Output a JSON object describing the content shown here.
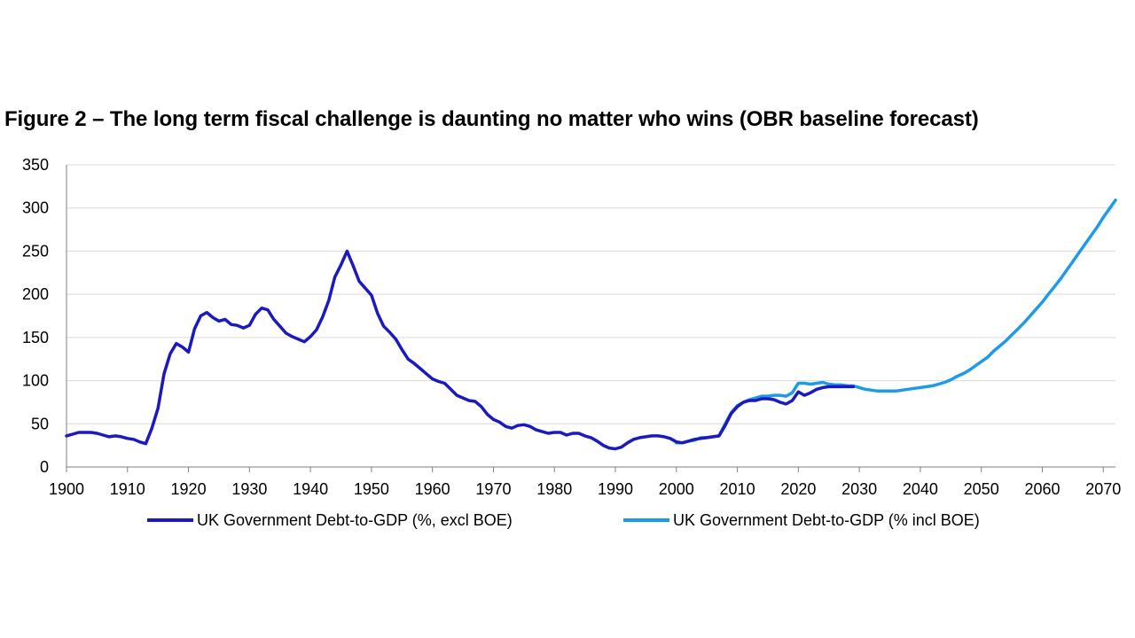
{
  "chart_data": {
    "type": "line",
    "title": "Figure 2 – The long term fiscal challenge is daunting no matter who wins (OBR baseline forecast)",
    "xlabel": "",
    "ylabel": "",
    "xlim": [
      1900,
      2072
    ],
    "ylim": [
      0,
      350
    ],
    "x_ticks": [
      "1900",
      "1910",
      "1920",
      "1930",
      "1940",
      "1950",
      "1960",
      "1970",
      "1980",
      "1990",
      "2000",
      "2010",
      "2020",
      "2030",
      "2040",
      "2050",
      "2060",
      "2070"
    ],
    "y_ticks": [
      "0",
      "50",
      "100",
      "150",
      "200",
      "250",
      "300",
      "350"
    ],
    "grid": "horizontal",
    "legend_position": "bottom",
    "colors": {
      "excl": "#1a1abf",
      "incl": "#1e9be8",
      "grid": "#d9d9d9",
      "axis": "#7f7f7f"
    },
    "series": [
      {
        "name": "UK Government Debt-to-GDP (%, excl BOE)",
        "color": "#1a1abf",
        "points": [
          [
            1900,
            36
          ],
          [
            1901,
            38
          ],
          [
            1902,
            40
          ],
          [
            1903,
            40
          ],
          [
            1904,
            40
          ],
          [
            1905,
            39
          ],
          [
            1906,
            37
          ],
          [
            1907,
            35
          ],
          [
            1908,
            36
          ],
          [
            1909,
            35
          ],
          [
            1910,
            33
          ],
          [
            1911,
            32
          ],
          [
            1912,
            29
          ],
          [
            1913,
            27
          ],
          [
            1914,
            45
          ],
          [
            1915,
            68
          ],
          [
            1916,
            108
          ],
          [
            1917,
            131
          ],
          [
            1918,
            143
          ],
          [
            1919,
            139
          ],
          [
            1920,
            133
          ],
          [
            1921,
            160
          ],
          [
            1922,
            175
          ],
          [
            1923,
            179
          ],
          [
            1924,
            173
          ],
          [
            1925,
            169
          ],
          [
            1926,
            171
          ],
          [
            1927,
            165
          ],
          [
            1928,
            164
          ],
          [
            1929,
            161
          ],
          [
            1930,
            164
          ],
          [
            1931,
            177
          ],
          [
            1932,
            184
          ],
          [
            1933,
            182
          ],
          [
            1934,
            171
          ],
          [
            1935,
            163
          ],
          [
            1936,
            155
          ],
          [
            1937,
            151
          ],
          [
            1938,
            148
          ],
          [
            1939,
            145
          ],
          [
            1940,
            151
          ],
          [
            1941,
            159
          ],
          [
            1942,
            174
          ],
          [
            1943,
            193
          ],
          [
            1944,
            220
          ],
          [
            1945,
            234
          ],
          [
            1946,
            250
          ],
          [
            1947,
            233
          ],
          [
            1948,
            215
          ],
          [
            1949,
            207
          ],
          [
            1950,
            199
          ],
          [
            1951,
            178
          ],
          [
            1952,
            163
          ],
          [
            1953,
            156
          ],
          [
            1954,
            148
          ],
          [
            1955,
            136
          ],
          [
            1956,
            125
          ],
          [
            1957,
            120
          ],
          [
            1958,
            114
          ],
          [
            1959,
            108
          ],
          [
            1960,
            102
          ],
          [
            1961,
            99
          ],
          [
            1962,
            97
          ],
          [
            1963,
            90
          ],
          [
            1964,
            83
          ],
          [
            1965,
            80
          ],
          [
            1966,
            77
          ],
          [
            1967,
            76
          ],
          [
            1968,
            70
          ],
          [
            1969,
            61
          ],
          [
            1970,
            55
          ],
          [
            1971,
            52
          ],
          [
            1972,
            47
          ],
          [
            1973,
            45
          ],
          [
            1974,
            48
          ],
          [
            1975,
            49
          ],
          [
            1976,
            47
          ],
          [
            1977,
            43
          ],
          [
            1978,
            41
          ],
          [
            1979,
            39
          ],
          [
            1980,
            40
          ],
          [
            1981,
            40
          ],
          [
            1982,
            37
          ],
          [
            1983,
            39
          ],
          [
            1984,
            39
          ],
          [
            1985,
            36
          ],
          [
            1986,
            34
          ],
          [
            1987,
            30
          ],
          [
            1988,
            25
          ],
          [
            1989,
            22
          ],
          [
            1990,
            21
          ],
          [
            1991,
            23
          ],
          [
            1992,
            28
          ],
          [
            1993,
            32
          ],
          [
            1994,
            34
          ],
          [
            1995,
            35
          ],
          [
            1996,
            36
          ],
          [
            1997,
            36
          ],
          [
            1998,
            35
          ],
          [
            1999,
            33
          ],
          [
            2000,
            29
          ],
          [
            2001,
            28
          ],
          [
            2002,
            30
          ],
          [
            2003,
            32
          ],
          [
            2004,
            33
          ],
          [
            2005,
            34
          ],
          [
            2006,
            35
          ],
          [
            2007,
            36
          ],
          [
            2008,
            48
          ],
          [
            2009,
            62
          ],
          [
            2010,
            70
          ],
          [
            2011,
            75
          ],
          [
            2012,
            77
          ],
          [
            2013,
            77
          ],
          [
            2014,
            79
          ],
          [
            2015,
            79
          ],
          [
            2016,
            78
          ],
          [
            2017,
            75
          ],
          [
            2018,
            73
          ],
          [
            2019,
            77
          ],
          [
            2020,
            87
          ],
          [
            2021,
            83
          ],
          [
            2022,
            86
          ],
          [
            2023,
            90
          ],
          [
            2024,
            92
          ],
          [
            2025,
            93
          ],
          [
            2026,
            93
          ],
          [
            2027,
            93
          ],
          [
            2028,
            93
          ],
          [
            2029,
            93
          ]
        ]
      },
      {
        "name": "UK Government Debt-to-GDP (% incl BOE)",
        "color": "#1e9be8",
        "points": [
          [
            2000,
            28
          ],
          [
            2001,
            28
          ],
          [
            2002,
            30
          ],
          [
            2003,
            31
          ],
          [
            2004,
            34
          ],
          [
            2005,
            34
          ],
          [
            2006,
            35
          ],
          [
            2007,
            36
          ],
          [
            2008,
            50
          ],
          [
            2009,
            63
          ],
          [
            2010,
            71
          ],
          [
            2011,
            75
          ],
          [
            2012,
            78
          ],
          [
            2013,
            80
          ],
          [
            2014,
            82
          ],
          [
            2015,
            82
          ],
          [
            2016,
            83
          ],
          [
            2017,
            83
          ],
          [
            2018,
            82
          ],
          [
            2019,
            86
          ],
          [
            2020,
            97
          ],
          [
            2021,
            97
          ],
          [
            2022,
            96
          ],
          [
            2023,
            97
          ],
          [
            2024,
            98
          ],
          [
            2025,
            96
          ],
          [
            2026,
            95
          ],
          [
            2027,
            95
          ],
          [
            2028,
            94
          ],
          [
            2029,
            94
          ],
          [
            2030,
            92
          ],
          [
            2031,
            90
          ],
          [
            2032,
            89
          ],
          [
            2033,
            88
          ],
          [
            2034,
            88
          ],
          [
            2035,
            88
          ],
          [
            2036,
            88
          ],
          [
            2037,
            89
          ],
          [
            2038,
            90
          ],
          [
            2039,
            91
          ],
          [
            2040,
            92
          ],
          [
            2041,
            93
          ],
          [
            2042,
            94
          ],
          [
            2043,
            96
          ],
          [
            2044,
            98
          ],
          [
            2045,
            101
          ],
          [
            2046,
            105
          ],
          [
            2047,
            108
          ],
          [
            2048,
            112
          ],
          [
            2049,
            117
          ],
          [
            2050,
            122
          ],
          [
            2051,
            127
          ],
          [
            2052,
            134
          ],
          [
            2053,
            140
          ],
          [
            2054,
            146
          ],
          [
            2055,
            153
          ],
          [
            2056,
            160
          ],
          [
            2057,
            167
          ],
          [
            2058,
            175
          ],
          [
            2059,
            183
          ],
          [
            2060,
            191
          ],
          [
            2061,
            200
          ],
          [
            2062,
            209
          ],
          [
            2063,
            218
          ],
          [
            2064,
            228
          ],
          [
            2065,
            238
          ],
          [
            2066,
            248
          ],
          [
            2067,
            258
          ],
          [
            2068,
            268
          ],
          [
            2069,
            278
          ],
          [
            2070,
            289
          ],
          [
            2071,
            299
          ],
          [
            2072,
            309
          ]
        ]
      }
    ]
  }
}
